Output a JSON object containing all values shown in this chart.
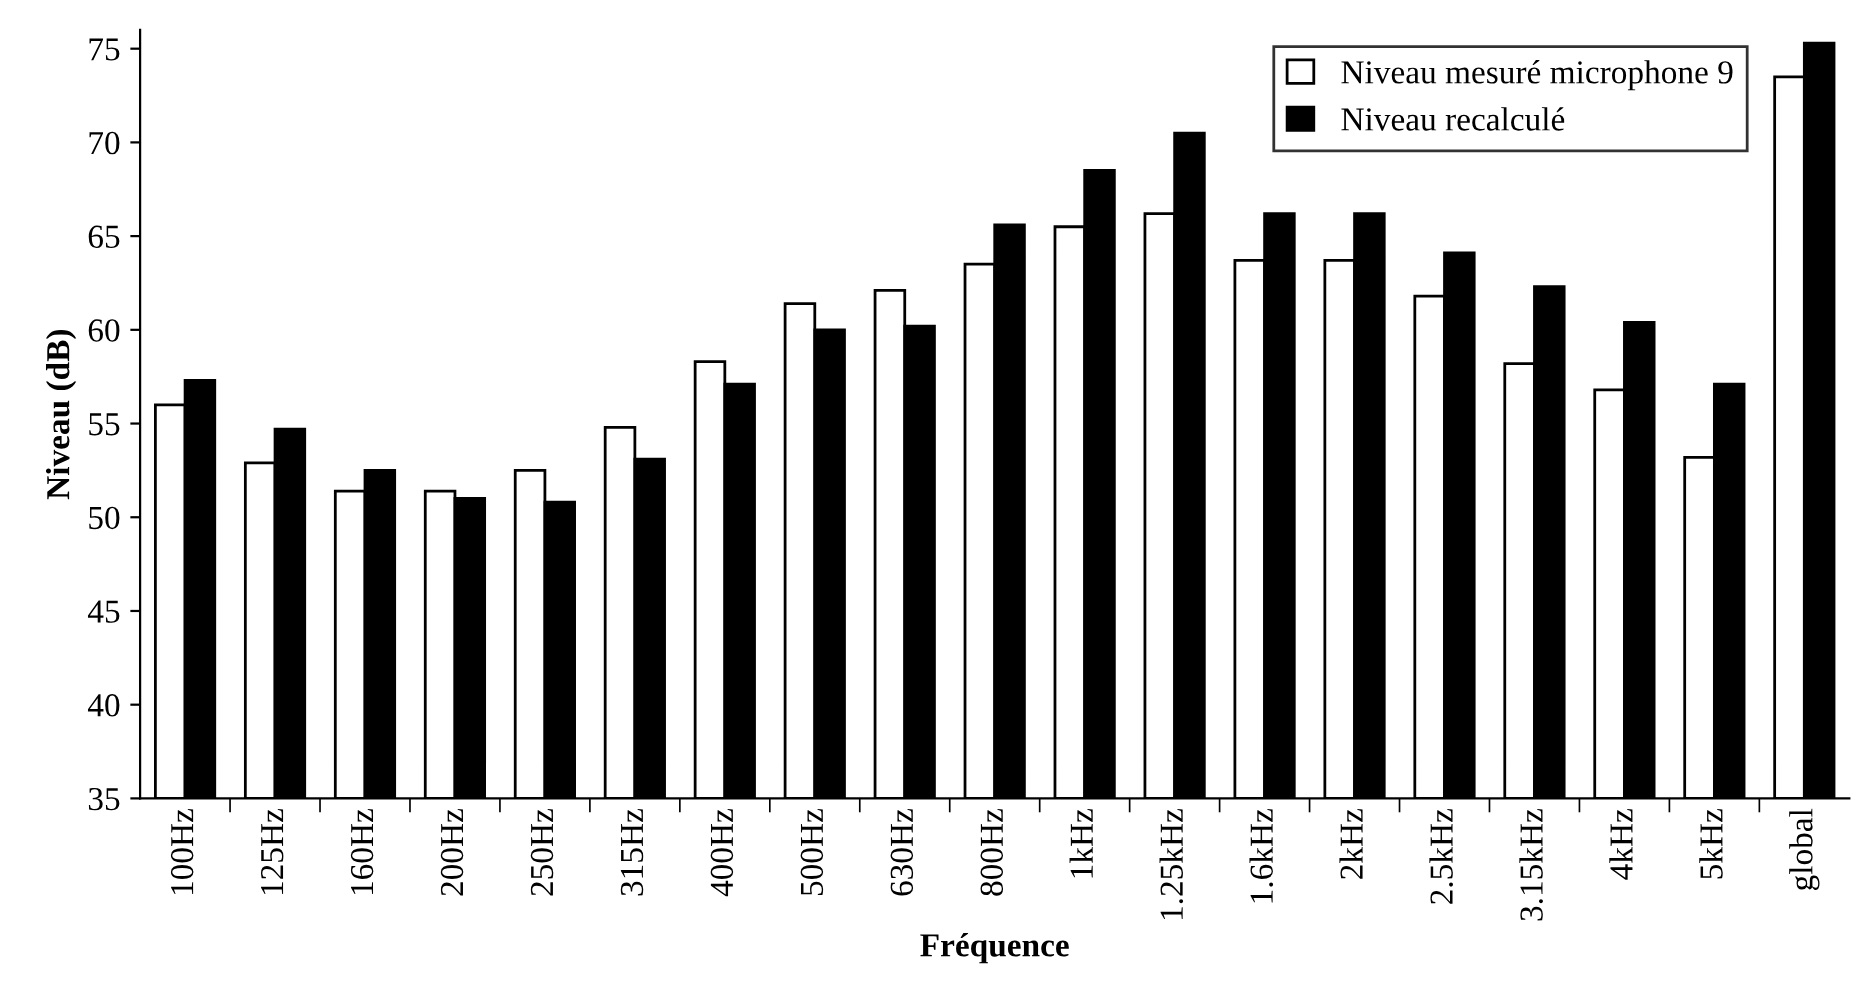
{
  "chart_data": {
    "type": "bar",
    "xlabel": "Fréquence",
    "ylabel": "Niveau (dB)",
    "categories": [
      "100Hz",
      "125Hz",
      "160Hz",
      "200Hz",
      "250Hz",
      "315Hz",
      "400Hz",
      "500Hz",
      "630Hz",
      "800Hz",
      "1kHz",
      "1.25kHz",
      "1.6kHz",
      "2kHz",
      "2.5kHz",
      "3.15kHz",
      "4kHz",
      "5kHz",
      "global"
    ],
    "series": [
      {
        "name": "Niveau mesuré microphone 9",
        "color": "#ffffff",
        "values": [
          56.0,
          52.9,
          51.4,
          51.4,
          52.5,
          54.8,
          58.3,
          61.4,
          62.1,
          63.5,
          65.5,
          66.2,
          63.7,
          63.7,
          61.8,
          58.2,
          56.8,
          53.2,
          73.5
        ]
      },
      {
        "name": "Niveau recalculé",
        "color": "#000000",
        "values": [
          57.3,
          54.7,
          52.5,
          51.0,
          50.8,
          53.1,
          57.1,
          60.0,
          60.2,
          65.6,
          68.5,
          70.5,
          66.2,
          66.2,
          64.1,
          62.3,
          60.4,
          57.1,
          75.3
        ]
      }
    ],
    "ylim": [
      35,
      76
    ],
    "yticks": [
      35,
      40,
      45,
      50,
      55,
      60,
      65,
      70,
      75
    ],
    "grid": false,
    "legend": "top right"
  }
}
